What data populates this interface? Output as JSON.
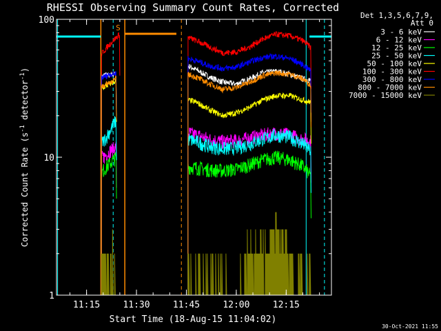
{
  "chart_data": {
    "type": "line",
    "title": "RHESSI Observing Summary Count Rates, Corrected",
    "xlabel": "Start Time (18-Aug-15 11:04:02)",
    "ylabel_main": "Corrected Count Rate (s",
    "ylabel_sup1": "-1",
    "ylabel_mid": " detector",
    "ylabel_sup2": "-1",
    "ylabel_end": ")",
    "ylog": true,
    "ylim": [
      1,
      100
    ],
    "xlim_minutes": [
      5.97,
      88.6
    ],
    "y_ticks": [
      {
        "value": 1,
        "label": "1"
      },
      {
        "value": 10,
        "label": "10"
      },
      {
        "value": 100,
        "label": "100"
      }
    ],
    "x_ticks": [
      {
        "minute": 15,
        "label": "11:15"
      },
      {
        "minute": 30,
        "label": "11:30"
      },
      {
        "minute": 45,
        "label": "11:45"
      },
      {
        "minute": 60,
        "label": "12:00"
      },
      {
        "minute": 75,
        "label": "12:15"
      },
      {
        "minute": 90,
        "label": "12:30"
      }
    ],
    "legend_header": [
      "Det 1,3,5,6,7,9,",
      "Att 0"
    ],
    "legend_position": "right",
    "series": [
      {
        "name": "3 - 6 keV",
        "color": "#ffffff",
        "segments": [
          {
            "x": [
              19.5,
              20,
              21,
              22,
              23,
              24
            ],
            "y": [
              38,
              39,
              40,
              39,
              40,
              40
            ]
          },
          {
            "x": [
              45.5,
              48,
              52,
              56,
              60,
              64,
              68,
              72,
              76,
              80,
              82.5
            ],
            "y": [
              46,
              43,
              38,
              35,
              34,
              37,
              41,
              42,
              40,
              37,
              36
            ]
          }
        ]
      },
      {
        "name": "6 - 12 keV",
        "color": "#ff00ff",
        "segments": [
          {
            "x": [
              19.5,
              20,
              21,
              22,
              23,
              24
            ],
            "y": [
              10,
              10,
              10.5,
              11,
              11.5,
              12
            ]
          },
          {
            "x": [
              45.5,
              48,
              52,
              56,
              60,
              64,
              68,
              72,
              76,
              80,
              82.5
            ],
            "y": [
              15,
              14.5,
              13.5,
              13,
              13.2,
              13.8,
              14.5,
              15,
              14.5,
              13.5,
              13
            ]
          }
        ]
      },
      {
        "name": "12 - 25 keV",
        "color": "#00ff00",
        "segments": [
          {
            "x": [
              19.5,
              20,
              21,
              22,
              23,
              24
            ],
            "y": [
              7.5,
              8,
              8.5,
              9,
              9.5,
              10
            ]
          },
          {
            "x": [
              45.5,
              48,
              52,
              56,
              60,
              64,
              68,
              72,
              76,
              80,
              82.5
            ],
            "y": [
              8.5,
              8.4,
              8.1,
              8,
              8.2,
              8.8,
              9.6,
              10,
              9.6,
              8.6,
              7.2
            ]
          }
        ]
      },
      {
        "name": "25 - 50 keV",
        "color": "#00ffff",
        "segments": [
          {
            "x": [
              19.5,
              20,
              21,
              22,
              23,
              24
            ],
            "y": [
              12.5,
              13,
              14,
              15.5,
              17,
              19
            ]
          },
          {
            "x": [
              45.5,
              48,
              52,
              56,
              60,
              64,
              68,
              72,
              76,
              80,
              82.5
            ],
            "y": [
              13.5,
              13,
              12,
              11.5,
              11.7,
              12.5,
              13.5,
              14.5,
              14,
              12.5,
              11
            ]
          }
        ]
      },
      {
        "name": "50 - 100 keV",
        "color": "#ffff00",
        "segments": [
          {
            "x": [
              19.5,
              20,
              21,
              22,
              23,
              24
            ],
            "y": [
              31,
              32,
              33,
              34,
              35,
              36
            ]
          },
          {
            "x": [
              45.5,
              48,
              52,
              56,
              60,
              64,
              68,
              72,
              76,
              80,
              82.5
            ],
            "y": [
              26,
              25,
              22,
              20,
              21,
              23,
              26,
              28,
              28,
              26,
              25
            ]
          }
        ]
      },
      {
        "name": "100 - 300 keV",
        "color": "#ff0000",
        "segments": [
          {
            "x": [
              19.5,
              20,
              21,
              22,
              23,
              24,
              25
            ],
            "y": [
              56,
              58,
              62,
              66,
              70,
              74,
              78
            ]
          },
          {
            "x": [
              45.5,
              48,
              52,
              56,
              60,
              64,
              68,
              72,
              76,
              80,
              82.5
            ],
            "y": [
              74,
              70,
              63,
              57,
              58,
              63,
              72,
              78,
              76,
              70,
              62
            ]
          }
        ]
      },
      {
        "name": "300 - 800 keV",
        "color": "#0000ff",
        "segments": [
          {
            "x": [
              19.5,
              20,
              21,
              22,
              23,
              24
            ],
            "y": [
              38,
              38,
              39,
              40,
              40,
              41
            ]
          },
          {
            "x": [
              45.5,
              48,
              52,
              56,
              60,
              64,
              68,
              72,
              76,
              80,
              82.5
            ],
            "y": [
              52,
              50,
              46,
              44,
              45,
              49,
              53,
              54,
              52,
              47,
              42
            ]
          }
        ]
      },
      {
        "name": "800 - 7000 keV",
        "color": "#ff8c00",
        "segments": [
          {
            "x": [
              19.5,
              20,
              21,
              22,
              23,
              24
            ],
            "y": [
              33,
              33,
              34,
              35,
              36,
              37
            ]
          },
          {
            "x": [
              45.5,
              48,
              52,
              56,
              60,
              64,
              68,
              72,
              76,
              80,
              82.5
            ],
            "y": [
              40,
              38,
              34,
              31,
              32,
              35,
              39,
              41,
              40,
              37,
              33
            ]
          }
        ]
      },
      {
        "name": "7000 - 15000 keV",
        "color": "#808000",
        "segments": [
          {
            "x": [
              19.5,
              20,
              21,
              22,
              23,
              24
            ],
            "y": [
              2,
              2,
              2,
              2,
              2,
              2
            ]
          },
          {
            "x": [
              45.5,
              48,
              52,
              56,
              60,
              64,
              68,
              72,
              76,
              80,
              82.5
            ],
            "y": [
              1,
              1,
              1,
              1,
              1,
              2,
              2,
              3,
              2,
              1,
              1
            ]
          }
        ]
      }
    ],
    "attenuator_level": 75,
    "attenuator_spans": [
      [
        6,
        19.3
      ],
      [
        26.5,
        42
      ],
      [
        82,
        88.6
      ]
    ],
    "orange_flag_span": [
      26.5,
      42
    ],
    "cyan_solid_lines": [
      6.3,
      81
    ],
    "cyan_dashed_lines": [
      23,
      86.5
    ],
    "orange_solid_lines": [
      19.3,
      26.5
    ],
    "orange_dashed_lines": [
      43.5
    ],
    "saa_marker": {
      "label": "S",
      "minute": 24.5
    },
    "annotation_date": "30-Oct-2021 11:55"
  }
}
